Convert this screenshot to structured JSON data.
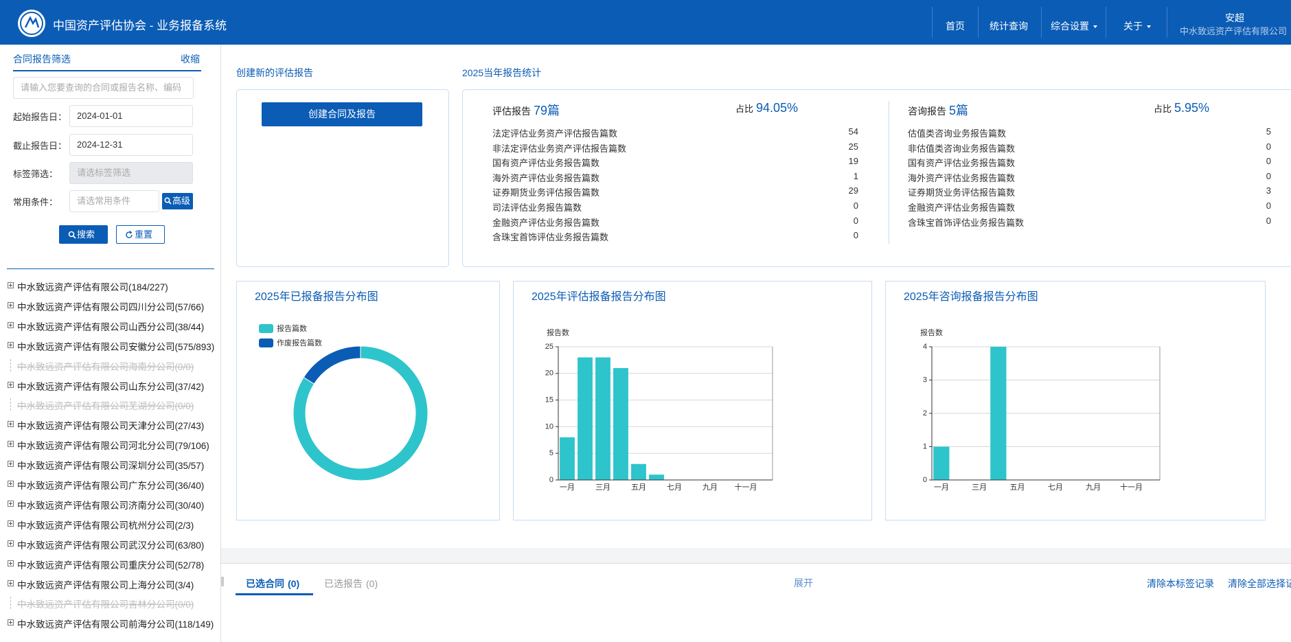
{
  "header": {
    "title": "中国资产评估协会 - 业务报备系统",
    "nav": [
      {
        "label": "首页",
        "dropdown": false
      },
      {
        "label": "统计查询",
        "dropdown": false
      },
      {
        "label": "综合设置",
        "dropdown": true
      },
      {
        "label": "关于",
        "dropdown": true
      }
    ],
    "user": "安超",
    "org": "中水致远资产评估有限公司"
  },
  "sidebar": {
    "title": "合同报告筛选",
    "collapse": "收缩",
    "search_placeholder": "请输入您要查询的合同或报告名称、编码",
    "fields": [
      {
        "label": "起始报告日：",
        "value": "2024-01-01"
      },
      {
        "label": "截止报告日：",
        "value": "2024-12-31"
      },
      {
        "label": "标签筛选：",
        "placeholder": "请选标签筛选"
      },
      {
        "label": "常用条件：",
        "placeholder": "请选常用条件",
        "button": "高级"
      }
    ],
    "search": "搜索",
    "reset": "重置",
    "tree": [
      {
        "label": "中水致远资产评估有限公司(184/227)",
        "disabled": false
      },
      {
        "label": "中水致远资产评估有限公司四川分公司(57/66)",
        "disabled": false
      },
      {
        "label": "中水致远资产评估有限公司山西分公司(38/44)",
        "disabled": false
      },
      {
        "label": "中水致远资产评估有限公司安徽分公司(575/893)",
        "disabled": false
      },
      {
        "label": "中水致远资产评估有限公司海南分公司(0/0)",
        "disabled": true
      },
      {
        "label": "中水致远资产评估有限公司山东分公司(37/42)",
        "disabled": false
      },
      {
        "label": "中水致远资产评估有限公司芜湖分公司(0/0)",
        "disabled": true
      },
      {
        "label": "中水致远资产评估有限公司天津分公司(27/43)",
        "disabled": false
      },
      {
        "label": "中水致远资产评估有限公司河北分公司(79/106)",
        "disabled": false
      },
      {
        "label": "中水致远资产评估有限公司深圳分公司(35/57)",
        "disabled": false
      },
      {
        "label": "中水致远资产评估有限公司广东分公司(36/40)",
        "disabled": false
      },
      {
        "label": "中水致远资产评估有限公司济南分公司(30/40)",
        "disabled": false
      },
      {
        "label": "中水致远资产评估有限公司杭州分公司(2/3)",
        "disabled": false
      },
      {
        "label": "中水致远资产评估有限公司武汉分公司(63/80)",
        "disabled": false
      },
      {
        "label": "中水致远资产评估有限公司重庆分公司(52/78)",
        "disabled": false
      },
      {
        "label": "中水致远资产评估有限公司上海分公司(3/4)",
        "disabled": false
      },
      {
        "label": "中水致远资产评估有限公司吉林分公司(0/0)",
        "disabled": true
      },
      {
        "label": "中水致远资产评估有限公司前海分公司(118/149)",
        "disabled": false
      }
    ]
  },
  "create": {
    "title": "创建新的评估报告",
    "button": "创建合同及报告"
  },
  "stats": {
    "title": "2025当年报告统计",
    "groups": [
      {
        "label": "评估报告",
        "count": "79篇",
        "ratio_label": "占比",
        "ratio": "94.05%",
        "rows": [
          {
            "label": "法定评估业务资产评估报告篇数",
            "value": 54
          },
          {
            "label": "非法定评估业务资产评估报告篇数",
            "value": 25
          },
          {
            "label": "国有资产评估业务报告篇数",
            "value": 19
          },
          {
            "label": "海外资产评估业务报告篇数",
            "value": 1
          },
          {
            "label": "证券期货业务评估报告篇数",
            "value": 29
          },
          {
            "label": "司法评估业务报告篇数",
            "value": 0
          },
          {
            "label": "金融资产评估业务报告篇数",
            "value": 0
          },
          {
            "label": "含珠宝首饰评估业务报告篇数",
            "value": 0
          }
        ]
      },
      {
        "label": "咨询报告",
        "count": "5篇",
        "ratio_label": "占比",
        "ratio": "5.95%",
        "rows": [
          {
            "label": "估值类咨询业务报告篇数",
            "value": 5
          },
          {
            "label": "非估值类咨询业务报告篇数",
            "value": 0
          },
          {
            "label": "国有资产评估业务报告篇数",
            "value": 0
          },
          {
            "label": "海外资产评估业务报告篇数",
            "value": 0
          },
          {
            "label": "证券期货业务评估报告篇数",
            "value": 3
          },
          {
            "label": "金融资产评估业务报告篇数",
            "value": 0
          },
          {
            "label": "含珠宝首饰评估业务报告篇数",
            "value": 0
          }
        ]
      }
    ]
  },
  "chart_data": [
    {
      "type": "pie",
      "title": "2025年已报备报告分布图",
      "donut": true,
      "labels": [
        "报告篇数",
        "作废报告篇数"
      ],
      "values": [
        84,
        16
      ],
      "colors": [
        "#2ec4cc",
        "#0b5cb5"
      ]
    },
    {
      "type": "bar",
      "title": "2025年评估报备报告分布图",
      "y_label": "报告数",
      "color": "#2ec4cc",
      "categories": [
        "一月",
        null,
        "三月",
        null,
        "五月",
        null,
        "七月",
        null,
        "九月",
        null,
        "十一月",
        null
      ],
      "values": [
        8,
        23,
        23,
        21,
        3,
        1,
        0,
        0,
        0,
        0,
        0,
        0
      ],
      "ylim": [
        0,
        25
      ],
      "yticks": [
        0,
        5,
        10,
        15,
        20,
        25
      ],
      "grid": true
    },
    {
      "type": "bar",
      "title": "2025年咨询报备报告分布图",
      "y_label": "报告数",
      "color": "#2ec4cc",
      "categories": [
        "一月",
        null,
        "三月",
        null,
        "五月",
        null,
        "七月",
        null,
        "九月",
        null,
        "十一月",
        null
      ],
      "values": [
        1,
        0,
        0,
        4,
        0,
        0,
        0,
        0,
        0,
        0,
        0,
        0
      ],
      "ylim": [
        0,
        4
      ],
      "yticks": [
        0,
        1,
        2,
        3,
        4
      ],
      "grid": true
    }
  ],
  "bottom": {
    "tabs": [
      {
        "label": "已选合同",
        "count": "(0)"
      },
      {
        "label": "已选报告",
        "count": "(0)"
      }
    ],
    "expand": "展开",
    "clear_tab": "清除本标签记录",
    "clear_all": "清除全部选择记录"
  }
}
